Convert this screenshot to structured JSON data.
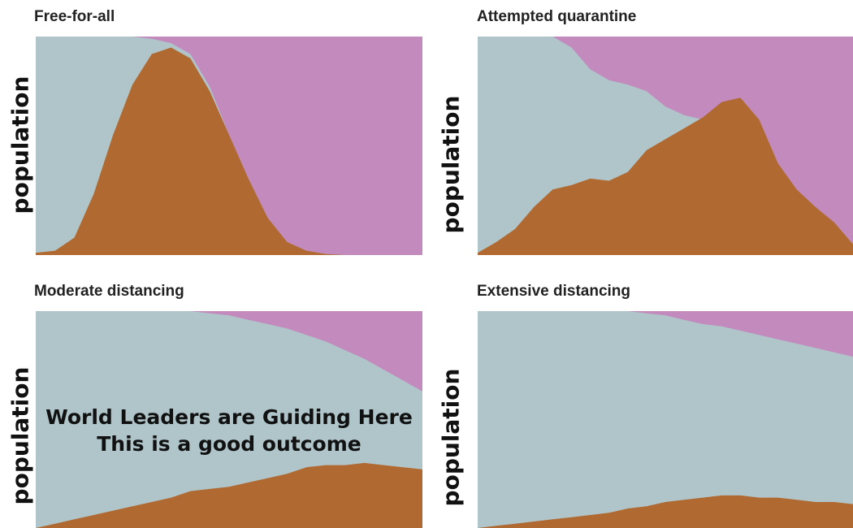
{
  "colors": {
    "healthy": "#afc5c9",
    "sick": "#b06931",
    "recovered": "#c28abd"
  },
  "overlay": {
    "line1": "World Leaders are Guiding Here",
    "line2": "This is a good outcome"
  },
  "chart_data": [
    {
      "type": "area",
      "title": "Free-for-all",
      "ylabel": "population",
      "xlabel": "",
      "stacked": true,
      "ylim": [
        0,
        1
      ],
      "x": [
        0,
        5,
        10,
        15,
        20,
        25,
        30,
        35,
        40,
        45,
        50,
        55,
        60,
        65,
        70,
        75,
        80,
        85,
        90,
        95,
        100
      ],
      "series": [
        {
          "values": [
            0.01,
            0.02,
            0.08,
            0.28,
            0.55,
            0.78,
            0.92,
            0.95,
            0.9,
            0.75,
            0.55,
            0.35,
            0.17,
            0.06,
            0.02,
            0.005,
            0,
            0,
            0,
            0,
            0
          ]
        },
        {
          "values": [
            0,
            0,
            0,
            0,
            0,
            0,
            0.01,
            0.03,
            0.08,
            0.23,
            0.45,
            0.65,
            0.83,
            0.94,
            0.98,
            0.995,
            1,
            1,
            1,
            1,
            1
          ]
        }
      ]
    },
    {
      "type": "area",
      "title": "Attempted quarantine",
      "ylabel": "population",
      "xlabel": "",
      "stacked": true,
      "ylim": [
        0,
        1
      ],
      "x": [
        0,
        5,
        10,
        15,
        20,
        25,
        30,
        35,
        40,
        45,
        50,
        55,
        60,
        65,
        70,
        75,
        80,
        85,
        90,
        95,
        100
      ],
      "series": [
        {
          "values": [
            0.01,
            0.06,
            0.12,
            0.22,
            0.3,
            0.32,
            0.35,
            0.34,
            0.38,
            0.48,
            0.53,
            0.58,
            0.63,
            0.7,
            0.72,
            0.62,
            0.42,
            0.3,
            0.22,
            0.15,
            0.05
          ]
        },
        {
          "values": [
            0,
            0,
            0,
            0,
            0,
            0.05,
            0.15,
            0.2,
            0.22,
            0.25,
            0.32,
            0.36,
            0.38,
            0.32,
            0.28,
            0.38,
            0.58,
            0.7,
            0.78,
            0.85,
            0.95
          ]
        }
      ]
    },
    {
      "type": "area",
      "title": "Moderate distancing",
      "ylabel": "population",
      "xlabel": "",
      "stacked": true,
      "ylim": [
        0,
        1
      ],
      "x": [
        0,
        5,
        10,
        15,
        20,
        25,
        30,
        35,
        40,
        45,
        50,
        55,
        60,
        65,
        70,
        75,
        80,
        85,
        90,
        95,
        100
      ],
      "series": [
        {
          "values": [
            0,
            0.02,
            0.04,
            0.06,
            0.08,
            0.1,
            0.12,
            0.14,
            0.17,
            0.18,
            0.19,
            0.21,
            0.23,
            0.25,
            0.28,
            0.29,
            0.29,
            0.3,
            0.29,
            0.28,
            0.27
          ]
        },
        {
          "values": [
            0,
            0,
            0,
            0,
            0,
            0,
            0,
            0,
            0,
            0.01,
            0.02,
            0.04,
            0.06,
            0.08,
            0.11,
            0.14,
            0.18,
            0.22,
            0.27,
            0.32,
            0.37
          ]
        }
      ]
    },
    {
      "type": "area",
      "title": "Extensive distancing",
      "ylabel": "population",
      "xlabel": "",
      "stacked": true,
      "ylim": [
        0,
        1
      ],
      "x": [
        0,
        5,
        10,
        15,
        20,
        25,
        30,
        35,
        40,
        45,
        50,
        55,
        60,
        65,
        70,
        75,
        80,
        85,
        90,
        95,
        100
      ],
      "series": [
        {
          "values": [
            0,
            0.01,
            0.02,
            0.03,
            0.04,
            0.05,
            0.06,
            0.07,
            0.09,
            0.1,
            0.12,
            0.13,
            0.14,
            0.15,
            0.15,
            0.14,
            0.14,
            0.13,
            0.12,
            0.12,
            0.11
          ]
        },
        {
          "values": [
            0,
            0,
            0,
            0,
            0,
            0,
            0,
            0,
            0,
            0.01,
            0.02,
            0.04,
            0.06,
            0.07,
            0.09,
            0.11,
            0.13,
            0.15,
            0.17,
            0.19,
            0.21
          ]
        }
      ]
    }
  ]
}
